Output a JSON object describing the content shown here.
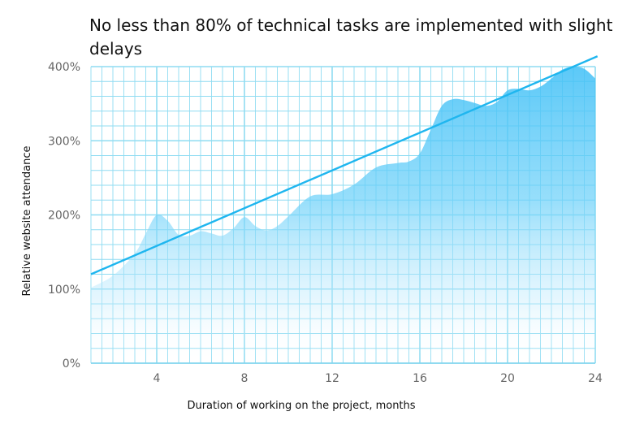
{
  "chart_data": {
    "type": "area",
    "title_lines": [
      "No less than 80% of technical tasks are implemented with slight",
      "delays"
    ],
    "xlabel": "Duration of working on the project, months",
    "ylabel": "Relative website attendance",
    "xlim": [
      1,
      24
    ],
    "ylim": [
      0,
      400
    ],
    "x_ticks": [
      4,
      8,
      12,
      16,
      20,
      24
    ],
    "x_tick_labels": [
      "4",
      "8",
      "12",
      "16",
      "20",
      "24"
    ],
    "y_ticks": [
      0,
      100,
      200,
      300,
      400
    ],
    "y_tick_labels": [
      "0%",
      "100%",
      "200%",
      "300%",
      "400%"
    ],
    "grid": true,
    "colors": {
      "grid": "#8fdcf2",
      "area": "#5ccaf8",
      "trend": "#1fb6ef",
      "axis": "#7fd3ee"
    },
    "series": [
      {
        "kind": "area",
        "x": [
          1,
          2,
          3,
          3.5,
          4,
          4.5,
          5,
          5.5,
          6,
          6.5,
          7,
          7.5,
          8,
          8.5,
          9,
          9.5,
          10,
          11,
          12,
          13,
          14,
          15,
          15.5,
          16,
          16.5,
          17,
          17.5,
          18,
          18.5,
          19,
          19.5,
          20,
          20.5,
          21,
          21.5,
          22,
          22.5,
          23,
          23.5,
          24
        ],
        "y": [
          102,
          118,
          148,
          175,
          200,
          192,
          173,
          172,
          178,
          175,
          172,
          182,
          197,
          185,
          179,
          185,
          198,
          225,
          228,
          241,
          264,
          270,
          272,
          283,
          315,
          347,
          356,
          355,
          351,
          347,
          352,
          368,
          370,
          368,
          373,
          384,
          396,
          400,
          397,
          384
        ]
      },
      {
        "kind": "line",
        "x": [
          1,
          24.1
        ],
        "y": [
          120,
          414
        ]
      }
    ]
  }
}
